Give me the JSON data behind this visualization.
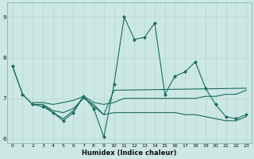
{
  "xlabel": "Humidex (Indice chaleur)",
  "bg_color": "#cce8e4",
  "grid_color": "#b8d8d4",
  "line_color": "#1a6b60",
  "xlim": [
    -0.5,
    23.5
  ],
  "ylim": [
    5.9,
    9.35
  ],
  "yticks": [
    6,
    7,
    8,
    9
  ],
  "xticks": [
    0,
    1,
    2,
    3,
    4,
    5,
    6,
    7,
    8,
    9,
    10,
    11,
    12,
    13,
    14,
    15,
    16,
    17,
    18,
    19,
    20,
    21,
    22,
    23
  ],
  "line1_x": [
    0,
    1,
    2,
    3,
    4,
    5,
    6,
    7,
    8,
    9,
    10,
    11,
    12,
    13,
    14,
    15,
    16,
    17,
    18,
    19,
    20,
    21,
    22,
    23
  ],
  "line1_y": [
    7.8,
    7.1,
    6.85,
    6.8,
    6.65,
    6.45,
    6.65,
    7.05,
    6.75,
    6.05,
    7.35,
    9.0,
    8.45,
    8.5,
    8.85,
    7.1,
    7.55,
    7.65,
    7.9,
    7.25,
    6.85,
    6.55,
    6.5,
    6.6
  ],
  "line2_x": [
    2,
    3,
    4,
    5,
    6,
    7,
    8,
    9,
    10,
    11,
    12,
    13,
    14,
    15,
    16,
    17,
    18,
    19,
    20,
    21,
    22,
    23
  ],
  "line2_y": [
    6.85,
    6.85,
    6.7,
    6.65,
    6.75,
    7.0,
    6.85,
    6.6,
    6.65,
    6.65,
    6.65,
    6.65,
    6.65,
    6.65,
    6.65,
    6.6,
    6.6,
    6.55,
    6.5,
    6.45,
    6.45,
    6.55
  ],
  "line3_x": [
    2,
    3,
    4,
    5,
    6,
    7,
    8,
    9,
    10,
    11,
    12,
    13,
    14,
    15,
    16,
    17,
    18,
    19,
    20,
    21,
    22,
    23
  ],
  "line3_y": [
    6.9,
    6.9,
    6.85,
    6.9,
    6.95,
    7.05,
    6.9,
    6.85,
    6.9,
    7.0,
    7.0,
    7.0,
    7.0,
    7.0,
    7.0,
    7.0,
    7.0,
    7.05,
    7.05,
    7.1,
    7.1,
    7.2
  ],
  "line4_x": [
    0,
    1,
    2,
    3,
    4,
    5,
    6,
    7,
    8,
    9,
    10,
    23
  ],
  "line4_y": [
    7.8,
    7.1,
    6.85,
    6.85,
    6.65,
    6.5,
    6.7,
    7.05,
    6.8,
    6.6,
    7.2,
    7.25
  ]
}
